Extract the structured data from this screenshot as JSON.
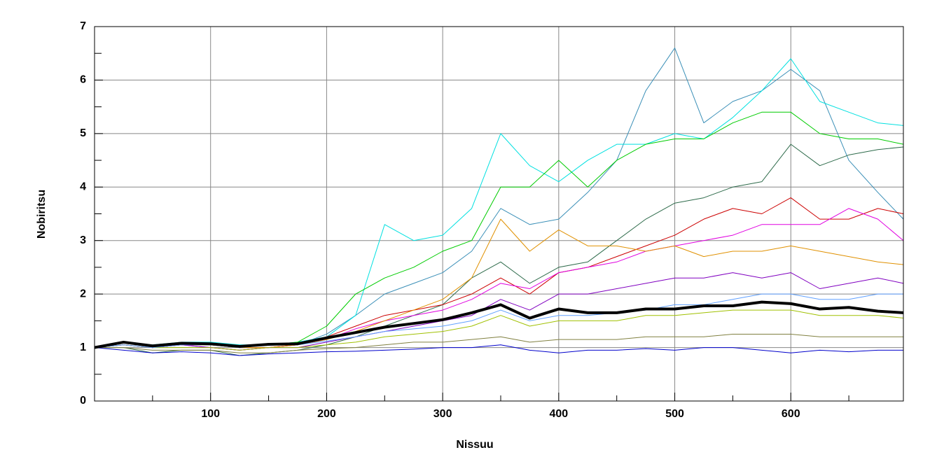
{
  "chart_data": {
    "type": "line",
    "x_label": "Nissuu",
    "y_label": "Nobiritsu",
    "x": [
      0,
      25,
      50,
      75,
      100,
      125,
      150,
      175,
      200,
      225,
      250,
      275,
      300,
      325,
      350,
      375,
      400,
      425,
      450,
      475,
      500,
      525,
      550,
      575,
      600,
      625,
      650,
      675,
      697
    ],
    "xlim": [
      0,
      697
    ],
    "xticks": [
      100,
      200,
      300,
      400,
      500,
      600
    ],
    "xminorticks": [
      50,
      150,
      250,
      350,
      450,
      550,
      650
    ],
    "ylim": [
      0,
      7
    ],
    "yticks": [
      0,
      1,
      2,
      3,
      4,
      5,
      6,
      7
    ],
    "yminorticks": [
      0.5,
      1.5,
      2.5,
      3.5,
      4.5,
      5.5,
      6.5
    ],
    "grid": true,
    "series": [
      {
        "color": "#3a8fb7",
        "values": [
          1,
          1.05,
          1,
          1.05,
          1.05,
          1,
          1,
          1.05,
          1.25,
          1.6,
          2.0,
          2.2,
          2.4,
          2.8,
          3.6,
          3.3,
          3.4,
          3.9,
          4.5,
          5.8,
          6.6,
          5.2,
          5.6,
          5.8,
          6.2,
          5.8,
          4.5,
          3.9,
          3.4
        ]
      },
      {
        "color": "#00e0e0",
        "values": [
          1,
          1.1,
          1.05,
          1.1,
          1.1,
          1.05,
          1.05,
          1.1,
          1.2,
          1.6,
          3.3,
          3.0,
          3.1,
          3.6,
          5.0,
          4.4,
          4.1,
          4.5,
          4.8,
          4.8,
          5.0,
          4.9,
          5.3,
          5.8,
          6.4,
          5.6,
          5.4,
          5.2,
          5.15
        ]
      },
      {
        "color": "#00cc00",
        "values": [
          1,
          1.05,
          1,
          1.05,
          1.05,
          1,
          1.05,
          1.1,
          1.4,
          2.0,
          2.3,
          2.5,
          2.8,
          3.0,
          4.0,
          4.0,
          4.5,
          4.0,
          4.5,
          4.8,
          4.9,
          4.9,
          5.2,
          5.4,
          5.4,
          5.0,
          4.9,
          4.9,
          4.8
        ]
      },
      {
        "color": "#2e6b4b",
        "values": [
          1,
          1.0,
          0.9,
          0.95,
          0.95,
          0.85,
          0.9,
          0.95,
          1.05,
          1.2,
          1.4,
          1.6,
          1.8,
          2.3,
          2.6,
          2.2,
          2.5,
          2.6,
          3.0,
          3.4,
          3.7,
          3.8,
          4.0,
          4.1,
          4.8,
          4.4,
          4.6,
          4.7,
          4.75
        ]
      },
      {
        "color": "#cc0000",
        "values": [
          1,
          1.05,
          1,
          1.05,
          1.05,
          1,
          1,
          1.05,
          1.2,
          1.4,
          1.6,
          1.7,
          1.8,
          2.0,
          2.3,
          2.0,
          2.4,
          2.5,
          2.7,
          2.9,
          3.1,
          3.4,
          3.6,
          3.5,
          3.8,
          3.4,
          3.4,
          3.6,
          3.5
        ]
      },
      {
        "color": "#e000e0",
        "values": [
          1,
          1.05,
          1,
          1.05,
          1.0,
          0.95,
          1.0,
          1.05,
          1.15,
          1.35,
          1.5,
          1.6,
          1.7,
          1.9,
          2.2,
          2.1,
          2.4,
          2.5,
          2.6,
          2.8,
          2.9,
          3.0,
          3.1,
          3.3,
          3.3,
          3.3,
          3.6,
          3.4,
          3.0
        ]
      },
      {
        "color": "#e09000",
        "values": [
          1,
          1.05,
          1,
          1.05,
          1.05,
          1.0,
          1.0,
          1.05,
          1.15,
          1.3,
          1.5,
          1.7,
          1.9,
          2.3,
          3.4,
          2.8,
          3.2,
          2.9,
          2.9,
          2.8,
          2.9,
          2.7,
          2.8,
          2.8,
          2.9,
          2.8,
          2.7,
          2.6,
          2.55
        ]
      },
      {
        "color": "#0000cc",
        "values": [
          1,
          0.95,
          0.9,
          0.92,
          0.9,
          0.85,
          0.88,
          0.9,
          0.92,
          0.93,
          0.95,
          0.97,
          1.0,
          1.0,
          1.05,
          0.95,
          0.9,
          0.95,
          0.95,
          0.98,
          0.95,
          1.0,
          1.0,
          0.95,
          0.9,
          0.95,
          0.92,
          0.95,
          0.95
        ]
      },
      {
        "color": "#8000c0",
        "values": [
          1,
          1.05,
          1,
          1.05,
          1.0,
          0.95,
          1.0,
          1.0,
          1.1,
          1.2,
          1.3,
          1.4,
          1.5,
          1.6,
          1.9,
          1.7,
          2.0,
          2.0,
          2.1,
          2.2,
          2.3,
          2.3,
          2.4,
          2.3,
          2.4,
          2.1,
          2.2,
          2.3,
          2.2
        ]
      },
      {
        "color": "#a0c000",
        "values": [
          1,
          1.05,
          1.0,
          1.0,
          1.0,
          0.95,
          1.0,
          1.0,
          1.05,
          1.1,
          1.2,
          1.25,
          1.3,
          1.4,
          1.6,
          1.4,
          1.5,
          1.5,
          1.5,
          1.6,
          1.6,
          1.65,
          1.7,
          1.7,
          1.7,
          1.6,
          1.6,
          1.6,
          1.55
        ]
      },
      {
        "color": "#808040",
        "values": [
          1,
          1.0,
          0.95,
          0.95,
          0.95,
          0.9,
          0.9,
          0.95,
          0.98,
          1.0,
          1.05,
          1.1,
          1.1,
          1.15,
          1.2,
          1.1,
          1.15,
          1.15,
          1.15,
          1.2,
          1.2,
          1.2,
          1.25,
          1.25,
          1.25,
          1.2,
          1.2,
          1.2,
          1.2
        ]
      },
      {
        "color": "#60a0ff",
        "values": [
          1,
          1.05,
          1,
          1.05,
          1.05,
          1,
          1.05,
          1.05,
          1.12,
          1.2,
          1.3,
          1.35,
          1.4,
          1.5,
          1.7,
          1.5,
          1.6,
          1.6,
          1.65,
          1.7,
          1.8,
          1.8,
          1.9,
          2.0,
          2.0,
          1.9,
          1.9,
          2.0,
          2.0
        ]
      },
      {
        "color": "#000000",
        "width": 4,
        "values": [
          1.0,
          1.1,
          1.03,
          1.08,
          1.07,
          1.02,
          1.06,
          1.07,
          1.18,
          1.28,
          1.38,
          1.45,
          1.52,
          1.65,
          1.8,
          1.55,
          1.72,
          1.65,
          1.65,
          1.72,
          1.72,
          1.78,
          1.78,
          1.85,
          1.82,
          1.72,
          1.75,
          1.68,
          1.65
        ]
      }
    ]
  }
}
